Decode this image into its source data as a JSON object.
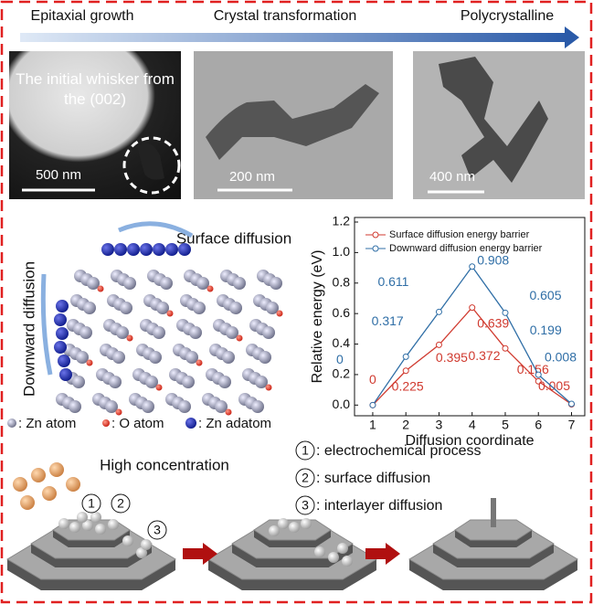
{
  "top_arrow": {
    "labels": [
      "Epitaxial growth",
      "Crystal transformation",
      "Polycrystalline"
    ]
  },
  "images": [
    {
      "caption": "The initial whisker from the (002)",
      "scale": "500 nm"
    },
    {
      "scale": "200 nm"
    },
    {
      "scale": "400 nm"
    }
  ],
  "model": {
    "surface": "Surface diffusion",
    "downward": "Downward diffusion",
    "legend": [
      ": Zn atom",
      ": O atom",
      ": Zn adatom"
    ]
  },
  "scheme": {
    "title": "High concentration",
    "steps": [
      {
        "number": "1",
        "text": ": electrochemical process"
      },
      {
        "number": "2",
        "text": ": surface diffusion"
      },
      {
        "number": "3",
        "text": ": interlayer diffusion"
      }
    ]
  },
  "chart_data": {
    "type": "line",
    "x_label": "Diffusion coordinate",
    "y_label": "Relative energy (eV)",
    "x": [
      1,
      2,
      3,
      4,
      5,
      6,
      7
    ],
    "series": [
      {
        "name": "Surface diffusion energy barrier",
        "color": "#d03a2f",
        "values": [
          0,
          0.225,
          0.395,
          0.639,
          0.372,
          0.156,
          0.005
        ]
      },
      {
        "name": "Downward diffusion energy barrier",
        "color": "#2f6ea6",
        "values": [
          0,
          0.317,
          0.611,
          0.908,
          0.605,
          0.199,
          0.008
        ]
      }
    ],
    "xlim": [
      0.45,
      7.4
    ],
    "xticks": [
      1,
      2,
      3,
      4,
      5,
      6,
      7
    ],
    "ylim": [
      -0.07,
      1.23
    ],
    "yticks": [
      {
        "value": 0,
        "label": "0.0"
      },
      0.2,
      0.4,
      0.6,
      0.8,
      {
        "value": 1,
        "label": "1.0"
      },
      1.2
    ],
    "legend_position": "upper-right"
  }
}
